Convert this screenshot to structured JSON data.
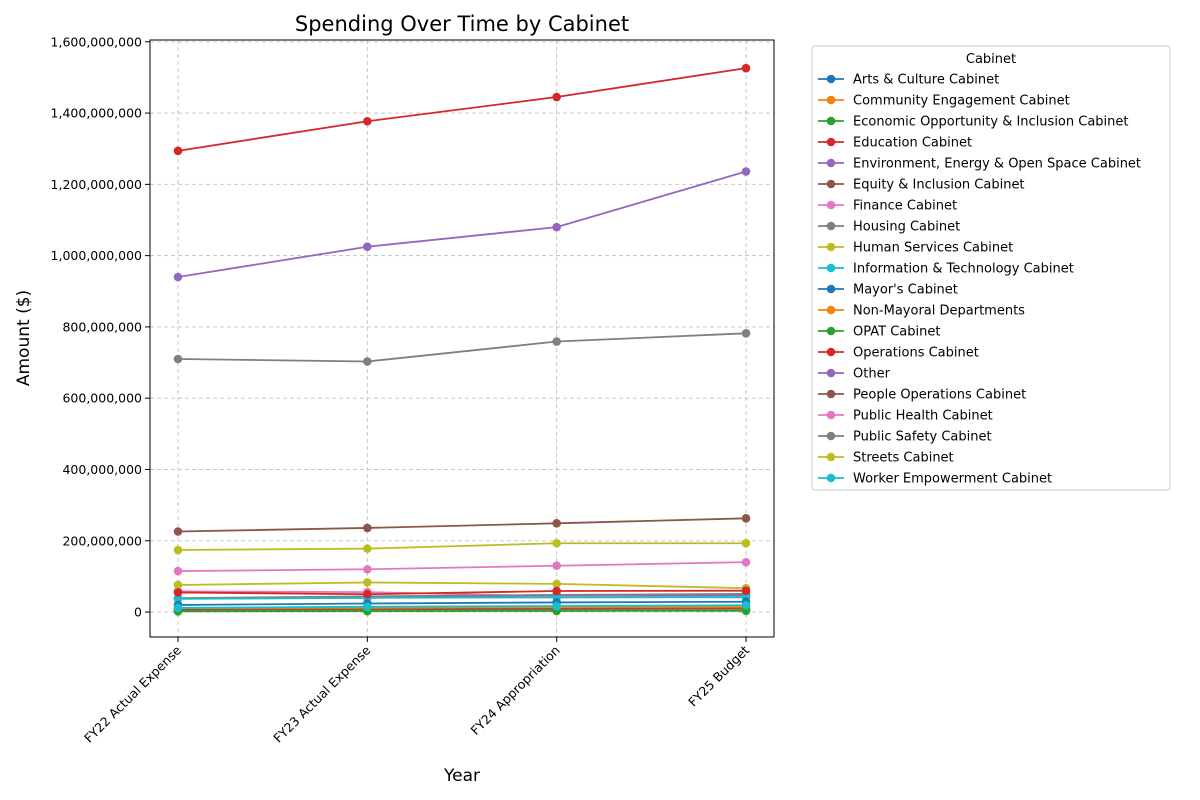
{
  "chart_data": {
    "type": "line",
    "title": "Spending Over Time by Cabinet",
    "xlabel": "Year",
    "ylabel": "Amount ($)",
    "x": [
      "FY22 Actual Expense",
      "FY23 Actual Expense",
      "FY24 Appropriation",
      "FY25 Budget"
    ],
    "ylim": [
      -70000000,
      1605000000
    ],
    "yticks": [
      0,
      200000000,
      400000000,
      600000000,
      800000000,
      1000000000,
      1200000000,
      1400000000,
      1600000000
    ],
    "ytick_labels": [
      "0",
      "200,000,000",
      "400,000,000",
      "600,000,000",
      "800,000,000",
      "1,000,000,000",
      "1,200,000,000",
      "1,400,000,000",
      "1,600,000,000"
    ],
    "grid": true,
    "legend_title": "Cabinet",
    "legend_position": "outside-right",
    "series": [
      {
        "name": "Arts & Culture Cabinet",
        "color": "#1f77b4",
        "values": [
          3500000,
          4000000,
          4500000,
          5000000
        ]
      },
      {
        "name": "Community Engagement Cabinet",
        "color": "#ff7f0e",
        "values": [
          5000000,
          5500000,
          6000000,
          6500000
        ]
      },
      {
        "name": "Economic Opportunity & Inclusion Cabinet",
        "color": "#2ca02c",
        "values": [
          8000000,
          11000000,
          13000000,
          14000000
        ]
      },
      {
        "name": "Education Cabinet",
        "color": "#d62728",
        "values": [
          1294000000,
          1377000000,
          1445000000,
          1526000000
        ]
      },
      {
        "name": "Environment, Energy & Open Space Cabinet",
        "color": "#9467bd",
        "values": [
          38000000,
          40000000,
          45000000,
          47000000
        ]
      },
      {
        "name": "Equity & Inclusion Cabinet",
        "color": "#8c564b",
        "values": [
          7000000,
          8000000,
          9000000,
          10000000
        ]
      },
      {
        "name": "Finance Cabinet",
        "color": "#e377c2",
        "values": [
          58000000,
          56000000,
          44000000,
          41000000
        ]
      },
      {
        "name": "Housing Cabinet",
        "color": "#7f7f7f",
        "values": [
          39000000,
          44000000,
          48000000,
          51000000
        ]
      },
      {
        "name": "Human Services Cabinet",
        "color": "#bcbd22",
        "values": [
          76000000,
          83000000,
          79000000,
          67000000
        ]
      },
      {
        "name": "Information & Technology Cabinet",
        "color": "#17becf",
        "values": [
          37000000,
          40000000,
          41000000,
          42000000
        ]
      },
      {
        "name": "Mayor's Cabinet",
        "color": "#1f77b4",
        "values": [
          20000000,
          24000000,
          27000000,
          29000000
        ]
      },
      {
        "name": "Non-Mayoral Departments",
        "color": "#ff7f0e",
        "values": [
          11000000,
          12000000,
          14000000,
          15000000
        ]
      },
      {
        "name": "OPAT Cabinet",
        "color": "#2ca02c",
        "values": [
          2000000,
          2500000,
          3000000,
          3500000
        ]
      },
      {
        "name": "Operations Cabinet",
        "color": "#d62728",
        "values": [
          55000000,
          50000000,
          59000000,
          60000000
        ]
      },
      {
        "name": "Other",
        "color": "#9467bd",
        "values": [
          940000000,
          1025000000,
          1080000000,
          1236000000
        ]
      },
      {
        "name": "People Operations Cabinet",
        "color": "#8c564b",
        "values": [
          226000000,
          236000000,
          249000000,
          263000000
        ]
      },
      {
        "name": "Public Health Cabinet",
        "color": "#e377c2",
        "values": [
          115000000,
          120000000,
          130000000,
          140000000
        ]
      },
      {
        "name": "Public Safety Cabinet",
        "color": "#7f7f7f",
        "values": [
          710000000,
          703000000,
          759000000,
          782000000
        ]
      },
      {
        "name": "Streets Cabinet",
        "color": "#bcbd22",
        "values": [
          174000000,
          178000000,
          193000000,
          193000000
        ]
      },
      {
        "name": "Worker Empowerment Cabinet",
        "color": "#17becf",
        "values": [
          12000000,
          15000000,
          17000000,
          19000000
        ]
      }
    ]
  }
}
